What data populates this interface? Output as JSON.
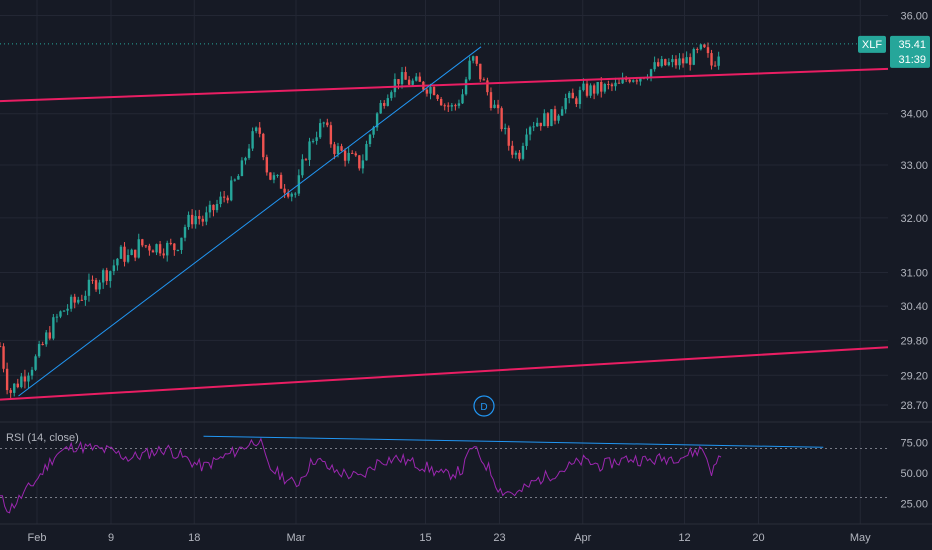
{
  "symbol": "XLF",
  "last_price": "35.41",
  "countdown": "31:39",
  "rsi_label": "RSI (14, close)",
  "marker": "D",
  "price_axis": {
    "ticks": [
      {
        "label": "36.00",
        "value": 36.0
      },
      {
        "label": "34.00",
        "value": 34.0
      },
      {
        "label": "33.00",
        "value": 33.0
      },
      {
        "label": "32.00",
        "value": 32.0
      },
      {
        "label": "31.00",
        "value": 31.0
      },
      {
        "label": "30.40",
        "value": 30.4
      },
      {
        "label": "29.80",
        "value": 29.8
      },
      {
        "label": "29.20",
        "value": 29.2
      },
      {
        "label": "28.70",
        "value": 28.7
      }
    ]
  },
  "rsi_axis": {
    "ticks": [
      {
        "label": "75.00",
        "value": 75
      },
      {
        "label": "50.00",
        "value": 50
      },
      {
        "label": "25.00",
        "value": 25
      }
    ]
  },
  "time_axis": {
    "ticks": [
      {
        "label": "Feb"
      },
      {
        "label": "9"
      },
      {
        "label": "18"
      },
      {
        "label": "Mar"
      },
      {
        "label": "15"
      },
      {
        "label": "23"
      },
      {
        "label": "Apr"
      },
      {
        "label": "12"
      },
      {
        "label": "20"
      },
      {
        "label": "May"
      }
    ]
  },
  "colors": {
    "background": "#161a25",
    "up": "#26a69a",
    "down": "#ef5350",
    "channel": "#e91e63",
    "trendline": "#2196f3",
    "rsi": "#9c27b0",
    "price_badge": "#26a69a",
    "grid": "#232734",
    "axis_text": "#b2b5be"
  },
  "chart_data": {
    "type": "candlestick",
    "symbol": "XLF",
    "interval": "30-minute",
    "price_scale": "log",
    "x_range": [
      "2021-01-28",
      "2021-05-04"
    ],
    "price_range": [
      28.45,
      36.2
    ],
    "series_path": [
      [
        "2021-01-28",
        29.7
      ],
      [
        "2021-01-29",
        28.9
      ],
      [
        "2021-02-01",
        29.5
      ],
      [
        "2021-02-02",
        29.85
      ],
      [
        "2021-02-03",
        30.15
      ],
      [
        "2021-02-04",
        30.35
      ],
      [
        "2021-02-05",
        30.45
      ],
      [
        "2021-02-08",
        30.95
      ],
      [
        "2021-02-09",
        31.05
      ],
      [
        "2021-02-10",
        31.35
      ],
      [
        "2021-02-11",
        31.25
      ],
      [
        "2021-02-12",
        31.5
      ],
      [
        "2021-02-16",
        31.45
      ],
      [
        "2021-02-17",
        31.85
      ],
      [
        "2021-02-18",
        32.05
      ],
      [
        "2021-02-19",
        31.95
      ],
      [
        "2021-02-22",
        32.55
      ],
      [
        "2021-02-23",
        32.85
      ],
      [
        "2021-02-24",
        33.45
      ],
      [
        "2021-02-25",
        33.7
      ],
      [
        "2021-02-26",
        32.8
      ],
      [
        "2021-03-01",
        32.45
      ],
      [
        "2021-03-02",
        33.2
      ],
      [
        "2021-03-03",
        33.6
      ],
      [
        "2021-03-04",
        33.8
      ],
      [
        "2021-03-05",
        33.35
      ],
      [
        "2021-03-08",
        33.0
      ],
      [
        "2021-03-09",
        33.6
      ],
      [
        "2021-03-10",
        34.1
      ],
      [
        "2021-03-11",
        34.5
      ],
      [
        "2021-03-12",
        34.7
      ],
      [
        "2021-03-15",
        34.55
      ],
      [
        "2021-03-16",
        34.5
      ],
      [
        "2021-03-17",
        34.2
      ],
      [
        "2021-03-18",
        34.1
      ],
      [
        "2021-03-19",
        34.4
      ],
      [
        "2021-03-20",
        35.15
      ],
      [
        "2021-03-22",
        34.3
      ],
      [
        "2021-03-23",
        33.9
      ],
      [
        "2021-03-24",
        33.4
      ],
      [
        "2021-03-25",
        33.15
      ],
      [
        "2021-03-26",
        33.8
      ],
      [
        "2021-03-29",
        33.95
      ],
      [
        "2021-03-30",
        34.3
      ],
      [
        "2021-03-31",
        34.25
      ],
      [
        "2021-04-01",
        34.45
      ],
      [
        "2021-04-05",
        34.55
      ],
      [
        "2021-04-06",
        34.75
      ],
      [
        "2021-04-07",
        34.75
      ],
      [
        "2021-04-08",
        34.85
      ],
      [
        "2021-04-09",
        34.95
      ],
      [
        "2021-04-12",
        35.05
      ],
      [
        "2021-04-13",
        35.15
      ],
      [
        "2021-04-14",
        35.3
      ],
      [
        "2021-04-15",
        34.95
      ],
      [
        "2021-04-16",
        35.41
      ]
    ],
    "rsi": {
      "name": "RSI (14, close)",
      "y_range": [
        10,
        90
      ],
      "levels": [
        70,
        30
      ],
      "values": [
        [
          "2021-01-28",
          30
        ],
        [
          "2021-01-29",
          20
        ],
        [
          "2021-02-01",
          45
        ],
        [
          "2021-02-03",
          65
        ],
        [
          "2021-02-05",
          72
        ],
        [
          "2021-02-09",
          68
        ],
        [
          "2021-02-11",
          62
        ],
        [
          "2021-02-15",
          70
        ],
        [
          "2021-02-18",
          58
        ],
        [
          "2021-02-19",
          55
        ],
        [
          "2021-02-22",
          66
        ],
        [
          "2021-02-24",
          74
        ],
        [
          "2021-02-25",
          78
        ],
        [
          "2021-02-26",
          55
        ],
        [
          "2021-03-01",
          40
        ],
        [
          "2021-03-03",
          62
        ],
        [
          "2021-03-05",
          52
        ],
        [
          "2021-03-08",
          46
        ],
        [
          "2021-03-10",
          60
        ],
        [
          "2021-03-12",
          62
        ],
        [
          "2021-03-15",
          55
        ],
        [
          "2021-03-17",
          48
        ],
        [
          "2021-03-19",
          52
        ],
        [
          "2021-03-20",
          72
        ],
        [
          "2021-03-22",
          52
        ],
        [
          "2021-03-23",
          36
        ],
        [
          "2021-03-25",
          33
        ],
        [
          "2021-03-27",
          44
        ],
        [
          "2021-03-29",
          50
        ],
        [
          "2021-04-01",
          60
        ],
        [
          "2021-04-03",
          56
        ],
        [
          "2021-04-06",
          62
        ],
        [
          "2021-04-08",
          60
        ],
        [
          "2021-04-10",
          62
        ],
        [
          "2021-04-12",
          64
        ],
        [
          "2021-04-14",
          70
        ],
        [
          "2021-04-15",
          50
        ],
        [
          "2021-04-16",
          67
        ]
      ]
    },
    "drawings": {
      "channel_upper": [
        [
          "2021-01-28",
          34.25
        ],
        [
          "2021-05-04",
          34.9
        ]
      ],
      "channel_lower": [
        [
          "2021-01-28",
          28.79
        ],
        [
          "2021-05-04",
          29.68
        ]
      ],
      "trendline": [
        [
          "2021-01-30",
          28.85
        ],
        [
          "2021-03-21",
          35.35
        ]
      ],
      "rsi_trendline": [
        [
          "2021-02-19",
          80
        ],
        [
          "2021-04-27",
          71
        ]
      ]
    }
  }
}
